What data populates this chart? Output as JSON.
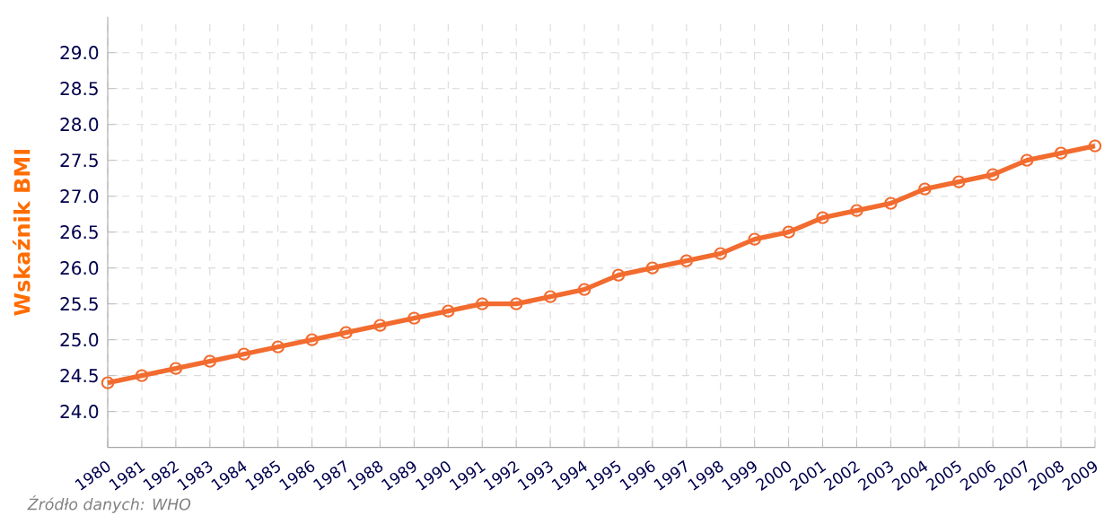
{
  "chart_data": {
    "type": "line",
    "ylabel": "Wskaźnik BMI",
    "categories": [
      "1980",
      "1981",
      "1982",
      "1983",
      "1984",
      "1985",
      "1986",
      "1987",
      "1988",
      "1989",
      "1990",
      "1991",
      "1992",
      "1993",
      "1994",
      "1995",
      "1996",
      "1997",
      "1998",
      "1999",
      "2000",
      "2001",
      "2002",
      "2003",
      "2004",
      "2005",
      "2006",
      "2007",
      "2008",
      "2009"
    ],
    "series": [
      {
        "color": "#f26b2f",
        "values": [
          24.4,
          24.5,
          24.6,
          24.7,
          24.8,
          24.9,
          25.0,
          25.1,
          25.2,
          25.3,
          25.4,
          25.5,
          25.5,
          25.6,
          25.7,
          25.9,
          26.0,
          26.1,
          26.2,
          26.4,
          26.5,
          26.7,
          26.8,
          26.9,
          27.1,
          27.2,
          27.3,
          27.5,
          27.6,
          27.7
        ]
      }
    ],
    "ylim": [
      23.5,
      29.5
    ],
    "yticks": [
      {
        "value": 24,
        "label": "24.0"
      },
      {
        "value": 24.5,
        "label": "24.5"
      },
      {
        "value": 25,
        "label": "25.0"
      },
      {
        "value": 25.5,
        "label": "25.5"
      },
      {
        "value": 26,
        "label": "26.0"
      },
      {
        "value": 26.5,
        "label": "26.5"
      },
      {
        "value": 27,
        "label": "27.0"
      },
      {
        "value": 27.5,
        "label": "27.5"
      },
      {
        "value": 28,
        "label": "28.0"
      },
      {
        "value": 28.5,
        "label": "28.5"
      },
      {
        "value": 29,
        "label": "29.0"
      }
    ],
    "grid": true,
    "marker": "circle",
    "line_style": "solid",
    "annotations": [
      "Źródło danych:  WHO"
    ]
  }
}
